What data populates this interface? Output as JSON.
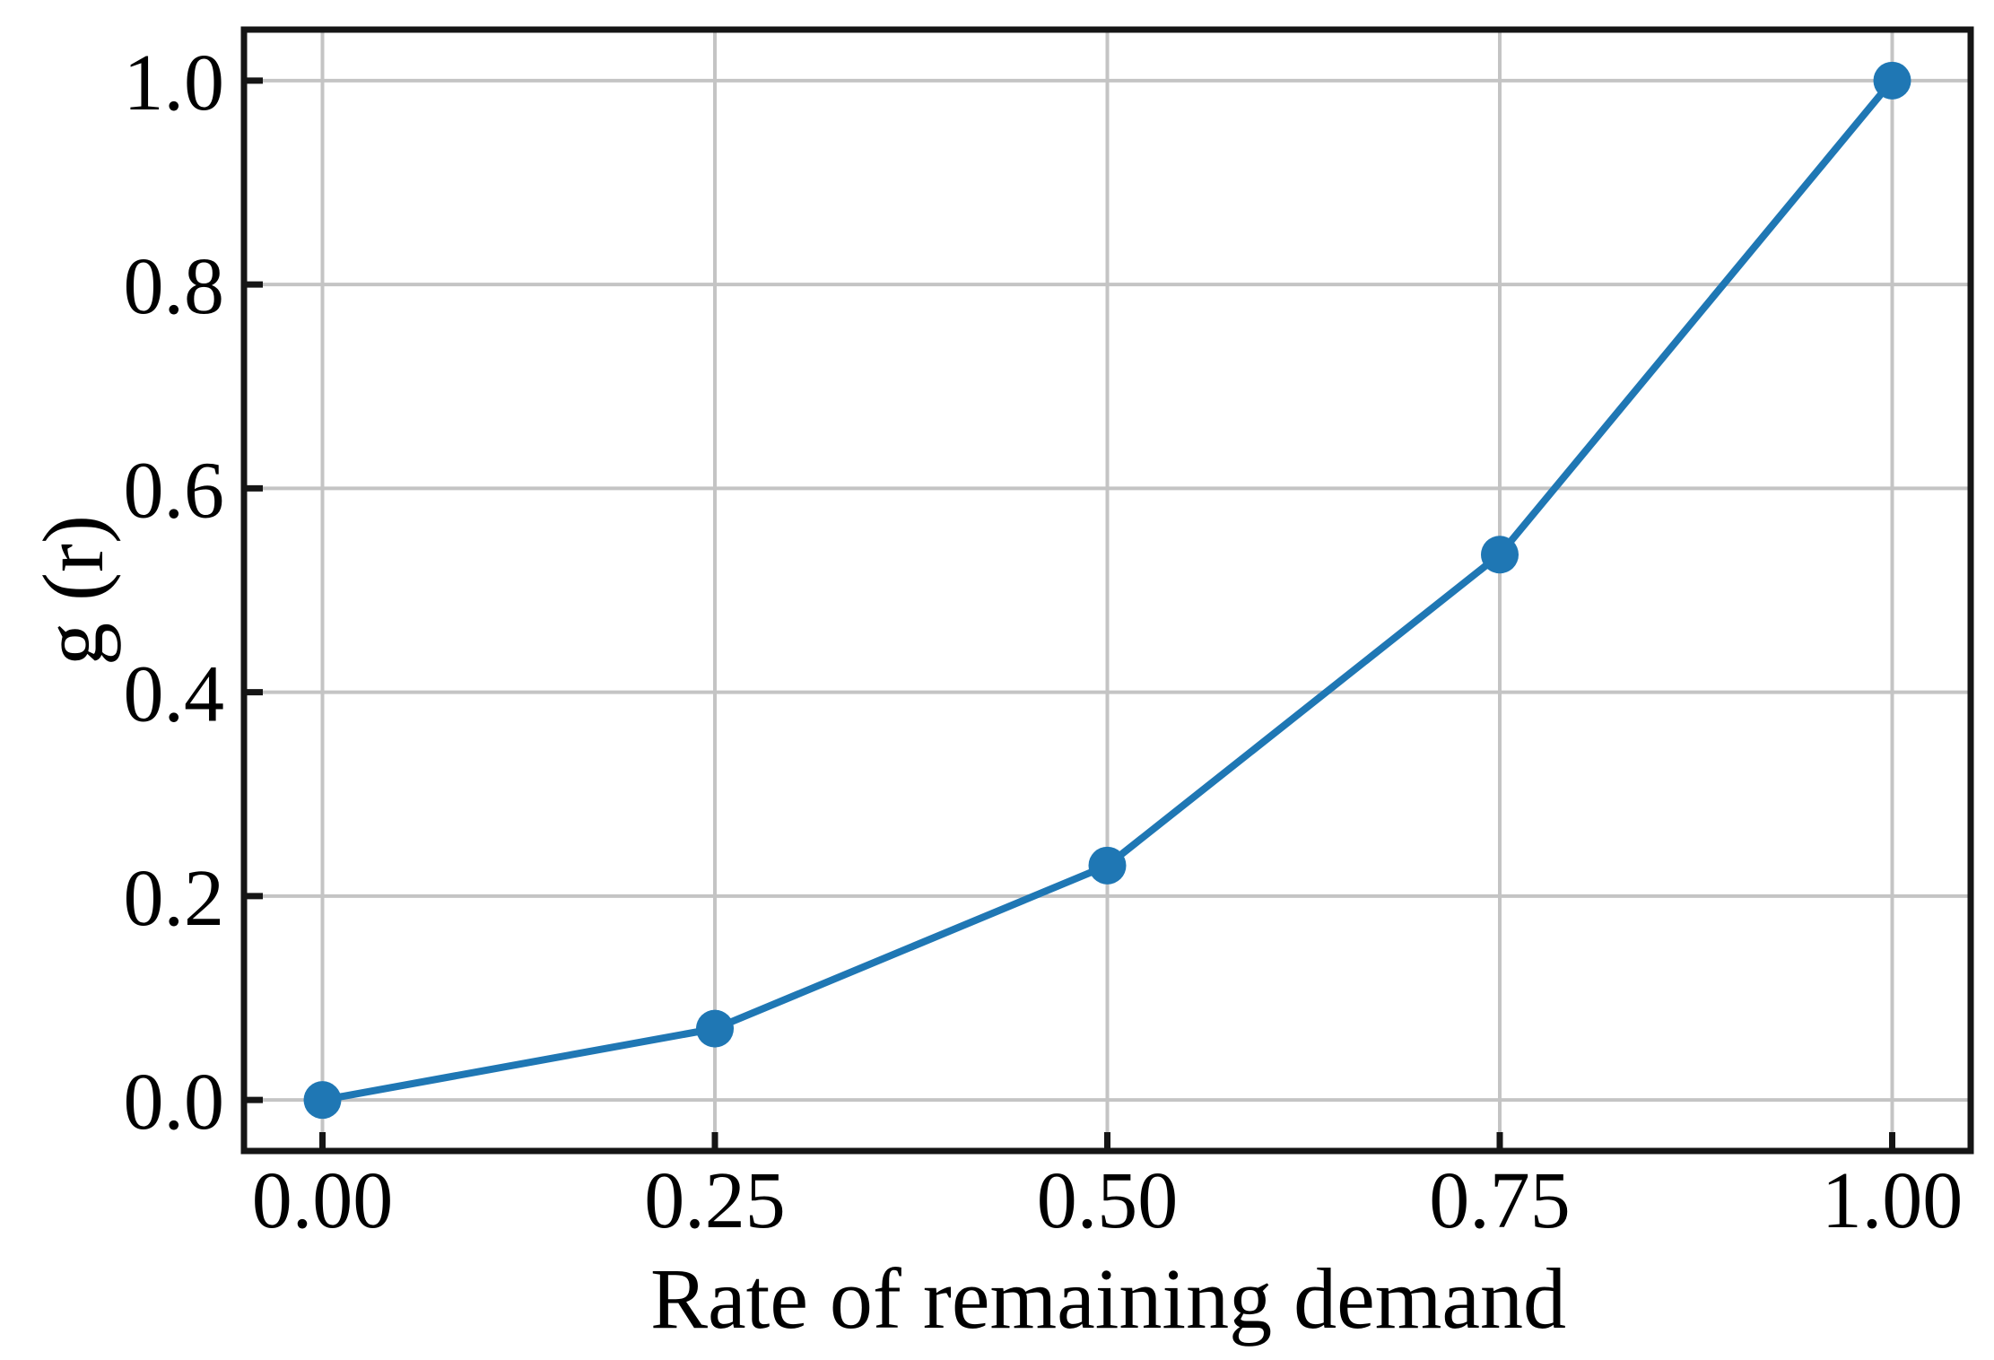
{
  "chart_data": {
    "type": "line",
    "title": "",
    "xlabel": "Rate of remaining demand",
    "ylabel": "g (r)",
    "x": [
      0.0,
      0.25,
      0.5,
      0.75,
      1.0
    ],
    "series": [
      {
        "name": "g(r)",
        "values": [
          0.0,
          0.07,
          0.23,
          0.535,
          1.0
        ]
      }
    ],
    "xticks": {
      "values": [
        0.0,
        0.25,
        0.5,
        0.75,
        1.0
      ],
      "labels": [
        "0.00",
        "0.25",
        "0.50",
        "0.75",
        "1.00"
      ]
    },
    "yticks": {
      "values": [
        0.0,
        0.2,
        0.4,
        0.6,
        0.8,
        1.0
      ],
      "labels": [
        "0.0",
        "0.2",
        "0.4",
        "0.6",
        "0.8",
        "1.0"
      ]
    },
    "xlim": [
      -0.05,
      1.05
    ],
    "ylim": [
      -0.05,
      1.05
    ],
    "grid": true,
    "legend": null,
    "tick_direction": "in",
    "marker": "circle",
    "line_color": "#1f77b4",
    "grid_color": "#c4c4c4",
    "axis_color": "#151515",
    "background_color": "#ffffff"
  }
}
